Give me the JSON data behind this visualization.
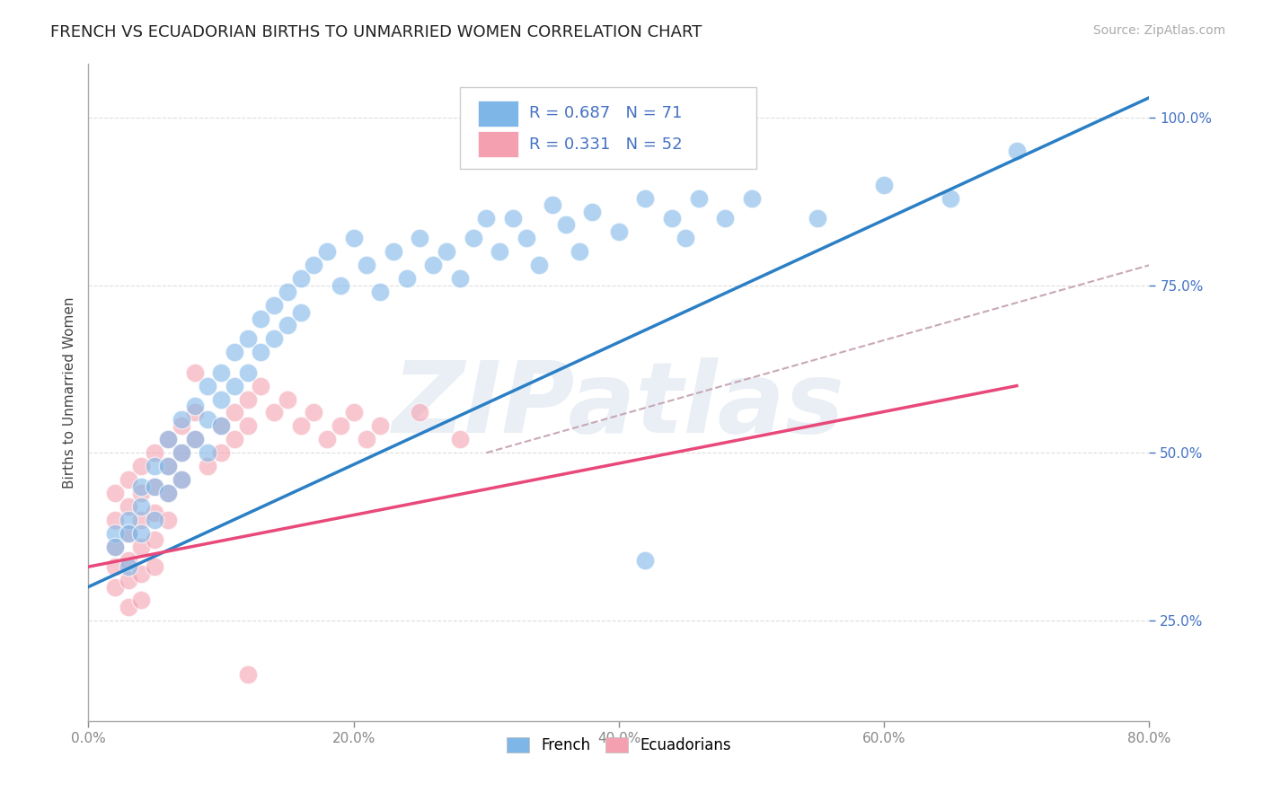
{
  "title": "FRENCH VS ECUADORIAN BIRTHS TO UNMARRIED WOMEN CORRELATION CHART",
  "source_text": "Source: ZipAtlas.com",
  "ylabel": "Births to Unmarried Women",
  "xlim": [
    0.0,
    0.8
  ],
  "ylim": [
    0.1,
    1.08
  ],
  "xtick_labels": [
    "0.0%",
    "",
    "",
    "",
    "",
    "",
    "",
    "",
    "20.0%",
    "",
    "",
    "",
    "",
    "",
    "",
    "",
    "40.0%",
    "",
    "",
    "",
    "",
    "",
    "",
    "",
    "60.0%",
    "",
    "",
    "",
    "",
    "",
    "",
    "",
    "80.0%"
  ],
  "xtick_vals": [
    0.0,
    0.2,
    0.4,
    0.6,
    0.8
  ],
  "xtick_display": [
    "0.0%",
    "20.0%",
    "40.0%",
    "60.0%",
    "80.0%"
  ],
  "ytick_labels": [
    "25.0%",
    "50.0%",
    "75.0%",
    "100.0%"
  ],
  "ytick_vals": [
    0.25,
    0.5,
    0.75,
    1.0
  ],
  "legend_items": [
    {
      "label": "R = 0.687   N = 71",
      "color": "#7EB6E8"
    },
    {
      "label": "R = 0.331   N = 52",
      "color": "#F4A0B0"
    }
  ],
  "legend_label_french": "French",
  "legend_label_ecua": "Ecuadorians",
  "watermark": "ZIPatlas",
  "french_color": "#7EB6E8",
  "ecua_color": "#F4A0B0",
  "blue_line_color": "#2B7FC5",
  "pink_line_color": "#E8497A",
  "gray_dash_color": "#C8A8B8",
  "french_points": [
    [
      0.02,
      0.38
    ],
    [
      0.02,
      0.36
    ],
    [
      0.03,
      0.4
    ],
    [
      0.03,
      0.38
    ],
    [
      0.03,
      0.33
    ],
    [
      0.04,
      0.45
    ],
    [
      0.04,
      0.42
    ],
    [
      0.04,
      0.38
    ],
    [
      0.05,
      0.48
    ],
    [
      0.05,
      0.45
    ],
    [
      0.05,
      0.4
    ],
    [
      0.06,
      0.52
    ],
    [
      0.06,
      0.48
    ],
    [
      0.06,
      0.44
    ],
    [
      0.07,
      0.55
    ],
    [
      0.07,
      0.5
    ],
    [
      0.07,
      0.46
    ],
    [
      0.08,
      0.57
    ],
    [
      0.08,
      0.52
    ],
    [
      0.09,
      0.6
    ],
    [
      0.09,
      0.55
    ],
    [
      0.09,
      0.5
    ],
    [
      0.1,
      0.62
    ],
    [
      0.1,
      0.58
    ],
    [
      0.1,
      0.54
    ],
    [
      0.11,
      0.65
    ],
    [
      0.11,
      0.6
    ],
    [
      0.12,
      0.67
    ],
    [
      0.12,
      0.62
    ],
    [
      0.13,
      0.7
    ],
    [
      0.13,
      0.65
    ],
    [
      0.14,
      0.72
    ],
    [
      0.14,
      0.67
    ],
    [
      0.15,
      0.74
    ],
    [
      0.15,
      0.69
    ],
    [
      0.16,
      0.76
    ],
    [
      0.16,
      0.71
    ],
    [
      0.17,
      0.78
    ],
    [
      0.18,
      0.8
    ],
    [
      0.19,
      0.75
    ],
    [
      0.2,
      0.82
    ],
    [
      0.21,
      0.78
    ],
    [
      0.22,
      0.74
    ],
    [
      0.23,
      0.8
    ],
    [
      0.24,
      0.76
    ],
    [
      0.25,
      0.82
    ],
    [
      0.26,
      0.78
    ],
    [
      0.27,
      0.8
    ],
    [
      0.28,
      0.76
    ],
    [
      0.29,
      0.82
    ],
    [
      0.3,
      0.85
    ],
    [
      0.31,
      0.8
    ],
    [
      0.32,
      0.85
    ],
    [
      0.33,
      0.82
    ],
    [
      0.34,
      0.78
    ],
    [
      0.35,
      0.87
    ],
    [
      0.36,
      0.84
    ],
    [
      0.37,
      0.8
    ],
    [
      0.38,
      0.86
    ],
    [
      0.4,
      0.83
    ],
    [
      0.42,
      0.88
    ],
    [
      0.44,
      0.85
    ],
    [
      0.45,
      0.82
    ],
    [
      0.46,
      0.88
    ],
    [
      0.48,
      0.85
    ],
    [
      0.5,
      0.88
    ],
    [
      0.55,
      0.85
    ],
    [
      0.6,
      0.9
    ],
    [
      0.65,
      0.88
    ],
    [
      0.7,
      0.95
    ],
    [
      0.42,
      0.34
    ]
  ],
  "ecua_points": [
    [
      0.02,
      0.44
    ],
    [
      0.02,
      0.4
    ],
    [
      0.02,
      0.36
    ],
    [
      0.02,
      0.33
    ],
    [
      0.02,
      0.3
    ],
    [
      0.03,
      0.46
    ],
    [
      0.03,
      0.42
    ],
    [
      0.03,
      0.38
    ],
    [
      0.03,
      0.34
    ],
    [
      0.03,
      0.31
    ],
    [
      0.03,
      0.27
    ],
    [
      0.04,
      0.48
    ],
    [
      0.04,
      0.44
    ],
    [
      0.04,
      0.4
    ],
    [
      0.04,
      0.36
    ],
    [
      0.04,
      0.32
    ],
    [
      0.04,
      0.28
    ],
    [
      0.05,
      0.5
    ],
    [
      0.05,
      0.45
    ],
    [
      0.05,
      0.41
    ],
    [
      0.05,
      0.37
    ],
    [
      0.05,
      0.33
    ],
    [
      0.06,
      0.52
    ],
    [
      0.06,
      0.48
    ],
    [
      0.06,
      0.44
    ],
    [
      0.06,
      0.4
    ],
    [
      0.07,
      0.54
    ],
    [
      0.07,
      0.5
    ],
    [
      0.07,
      0.46
    ],
    [
      0.08,
      0.56
    ],
    [
      0.08,
      0.52
    ],
    [
      0.09,
      0.48
    ],
    [
      0.1,
      0.54
    ],
    [
      0.1,
      0.5
    ],
    [
      0.11,
      0.56
    ],
    [
      0.11,
      0.52
    ],
    [
      0.12,
      0.58
    ],
    [
      0.12,
      0.54
    ],
    [
      0.13,
      0.6
    ],
    [
      0.14,
      0.56
    ],
    [
      0.15,
      0.58
    ],
    [
      0.16,
      0.54
    ],
    [
      0.17,
      0.56
    ],
    [
      0.18,
      0.52
    ],
    [
      0.19,
      0.54
    ],
    [
      0.2,
      0.56
    ],
    [
      0.21,
      0.52
    ],
    [
      0.22,
      0.54
    ],
    [
      0.25,
      0.56
    ],
    [
      0.28,
      0.52
    ],
    [
      0.08,
      0.62
    ],
    [
      0.12,
      0.17
    ]
  ],
  "blue_line": {
    "x0": 0.0,
    "y0": 0.3,
    "x1": 0.8,
    "y1": 1.03
  },
  "pink_line": {
    "x0": 0.0,
    "y0": 0.33,
    "x1": 0.7,
    "y1": 0.6
  },
  "gray_dash_line": {
    "x0": 0.3,
    "y0": 0.5,
    "x1": 0.8,
    "y1": 0.78
  }
}
